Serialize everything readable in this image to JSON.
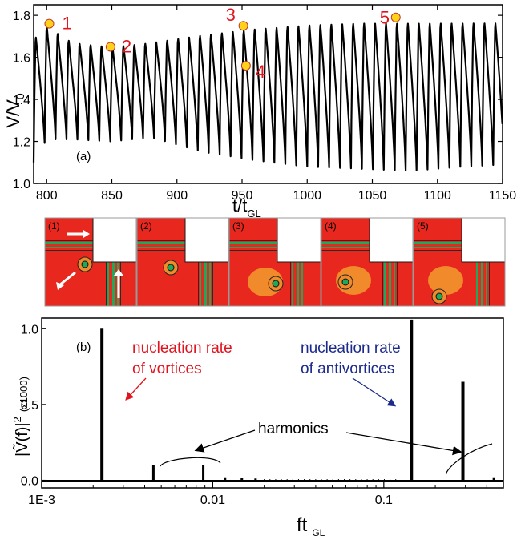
{
  "chart_data": [
    {
      "type": "line",
      "panel_label": "(a)",
      "xlabel": "t/t",
      "xlabel_sub": "GL",
      "ylabel": "V/V",
      "ylabel_sub": "0",
      "xlim": [
        790,
        1150
      ],
      "ylim": [
        1.0,
        1.85
      ],
      "xticks": [
        800,
        850,
        900,
        950,
        1000,
        1050,
        1100,
        1150
      ],
      "yticks": [
        1.0,
        1.2,
        1.4,
        1.6,
        1.8
      ],
      "ytick_labels": [
        "1.0",
        "1.2",
        "1.4",
        "1.6",
        "1.8"
      ],
      "series": [
        {
          "oscillation_period": 8.4,
          "upper_envelope": {
            "x": [
              790,
              800,
              820,
              850,
              880,
              920,
              960,
              1000,
              1040,
              1080,
              1120,
              1150
            ],
            "y": [
              1.7,
              1.76,
              1.68,
              1.66,
              1.68,
              1.72,
              1.75,
              1.77,
              1.78,
              1.78,
              1.78,
              1.78
            ]
          },
          "lower_envelope": {
            "x": [
              790,
              800,
              820,
              850,
              880,
              920,
              960,
              1000,
              1040,
              1080,
              1120,
              1150
            ],
            "y": [
              1.1,
              1.21,
              1.21,
              1.2,
              1.22,
              1.15,
              1.11,
              1.08,
              1.07,
              1.06,
              1.08,
              1.09
            ]
          }
        }
      ],
      "markers": [
        {
          "label": "1",
          "x": 802,
          "y": 1.76
        },
        {
          "label": "2",
          "x": 849,
          "y": 1.65
        },
        {
          "label": "3",
          "x": 951,
          "y": 1.75
        },
        {
          "label": "4",
          "x": 953,
          "y": 1.56
        },
        {
          "label": "5",
          "x": 1068,
          "y": 1.79
        }
      ],
      "marker_color": "#ffd21a",
      "marker_label_color": "#e0141e"
    },
    {
      "type": "line",
      "panel_label": "(b)",
      "xlabel": "ft",
      "xlabel_sub": "GL",
      "ylabel": "|Ṽ(f)|",
      "ylabel_sup": "2",
      "ylabel_unit": "(x1000)",
      "xscale": "log",
      "xlim": [
        0.001,
        0.5
      ],
      "ylim": [
        -0.05,
        1.07
      ],
      "xtick_labels": [
        "1E-3",
        "0.01",
        "0.1"
      ],
      "xticks": [
        0.001,
        0.01,
        0.1
      ],
      "yticks": [
        0.0,
        0.5,
        1.0
      ],
      "ytick_labels": [
        "0.0",
        "0.5",
        "1.0"
      ],
      "peaks": [
        {
          "x": 0.00225,
          "y": 1.0
        },
        {
          "x": 0.0045,
          "y": 0.1
        },
        {
          "x": 0.0088,
          "y": 0.1
        },
        {
          "x": 0.0118,
          "y": 0.02
        },
        {
          "x": 0.0148,
          "y": 0.015
        },
        {
          "x": 0.0178,
          "y": 0.012
        },
        {
          "x": 0.145,
          "y": 1.06
        },
        {
          "x": 0.29,
          "y": 0.65
        },
        {
          "x": 0.44,
          "y": 0.02
        }
      ],
      "annotations": [
        {
          "text": "nucleation rate",
          "color": "#e0141e"
        },
        {
          "text": "of vortices",
          "color": "#e0141e"
        },
        {
          "text": "nucleation rate",
          "color": "#1c2a8c"
        },
        {
          "text": "of antivortices",
          "color": "#1c2a8c"
        },
        {
          "text": "harmonics",
          "color": "#000000"
        }
      ]
    }
  ],
  "snapshots": {
    "labels": [
      "(1)",
      "(2)",
      "(3)",
      "(4)",
      "(5)"
    ],
    "colors": {
      "bulk": "#e8281e",
      "contour": "#2a2a2a",
      "orange": "#f08a2a",
      "green": "#1fa85a"
    }
  }
}
